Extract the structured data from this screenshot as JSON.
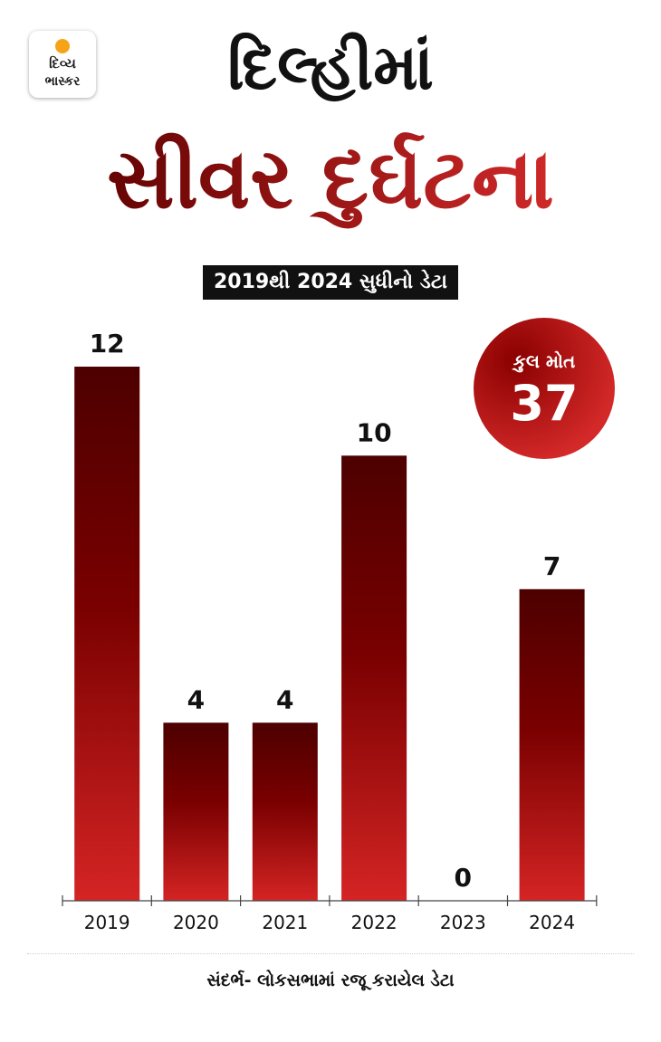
{
  "logo": {
    "line1": "દિવ્ય",
    "line2": "ભાસ્કર"
  },
  "title": {
    "line1": "દિલ્હીમાં",
    "line2": "સીવર દુર્ઘટના"
  },
  "subtitle": "2019થી 2024 સુધીનો ડેટા",
  "total": {
    "label": "કુલ મોત",
    "value": "37"
  },
  "source": "સંદર્ભ- લોકસભામાં રજૂ કરાયેલ ડેટા",
  "colors": {
    "bar_top": "#4d0000",
    "bar_bottom": "#d52424",
    "accent": "#c62828"
  },
  "chart_data": {
    "type": "bar",
    "categories": [
      "2019",
      "2020",
      "2021",
      "2022",
      "2023",
      "2024"
    ],
    "values": [
      12,
      4,
      4,
      10,
      0,
      7
    ],
    "ylim": [
      0,
      12
    ],
    "grid": false,
    "data_labels": true
  }
}
